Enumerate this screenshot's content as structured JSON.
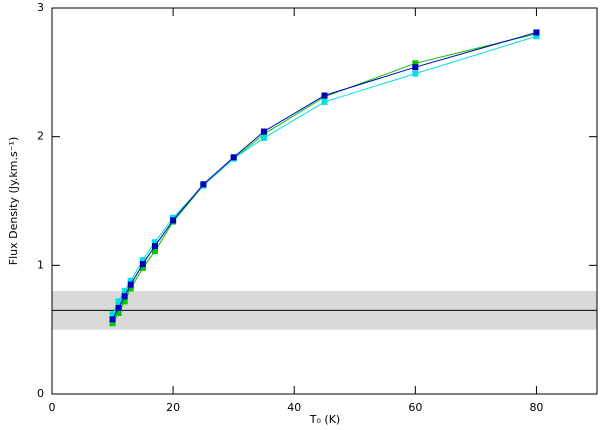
{
  "chart_data": {
    "type": "line",
    "xlabel": "T₀ (K)",
    "ylabel": "Flux Density (Jy.km.s⁻¹)",
    "x": [
      10,
      11,
      12,
      13,
      15,
      17,
      20,
      25,
      30,
      35,
      45,
      60,
      80
    ],
    "series": [
      {
        "color": "#00c800",
        "values": [
          0.55,
          0.63,
          0.72,
          0.82,
          0.98,
          1.11,
          1.34,
          1.62,
          1.83,
          2.02,
          2.31,
          2.57,
          2.8
        ]
      },
      {
        "color": "#00e0e0",
        "values": [
          0.62,
          0.72,
          0.8,
          0.88,
          1.04,
          1.18,
          1.37,
          1.62,
          1.83,
          1.99,
          2.27,
          2.49,
          2.78
        ]
      },
      {
        "color": "#0000c0",
        "values": [
          0.58,
          0.67,
          0.76,
          0.85,
          1.01,
          1.15,
          1.35,
          1.63,
          1.84,
          2.04,
          2.32,
          2.54,
          2.81
        ]
      }
    ],
    "hline": 0.65,
    "band": [
      0.5,
      0.8
    ],
    "xlim": [
      0,
      90
    ],
    "xticks": [
      0,
      20,
      40,
      60,
      80
    ],
    "ylim": [
      0,
      3
    ],
    "yticks": [
      0,
      1,
      2,
      3
    ]
  }
}
